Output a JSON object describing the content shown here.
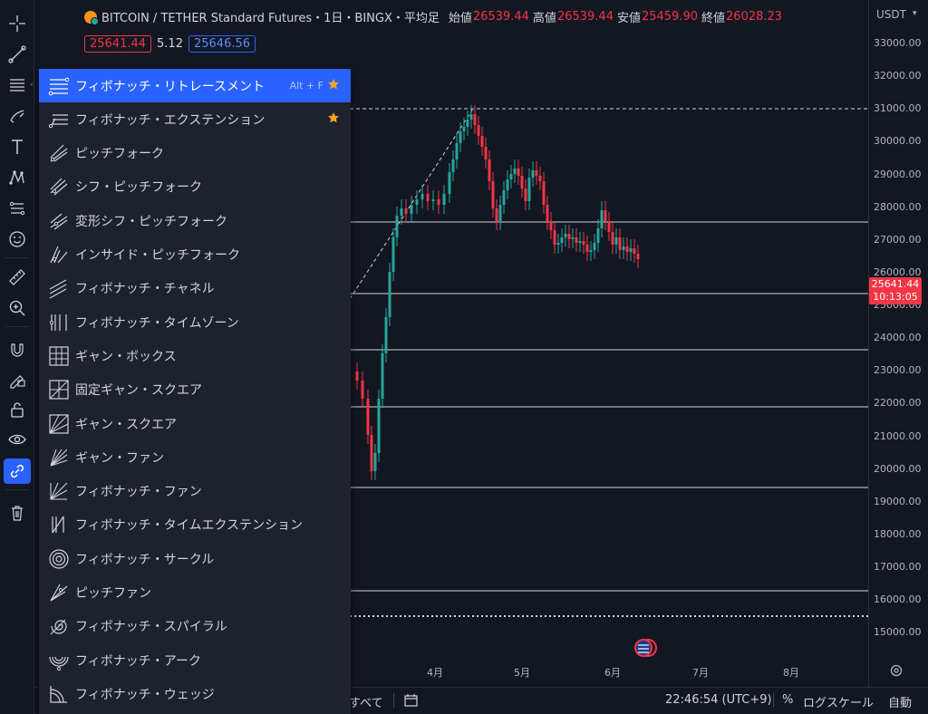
{
  "header": {
    "symbol": "BITCOIN / TETHER Standard Futures・1日・BINGX・平均足",
    "open_label": "始値",
    "open": "26539.44",
    "high_label": "高値",
    "high": "26539.44",
    "low_label": "安値",
    "low": "25459.90",
    "close_label": "終値",
    "close": "26028.23",
    "sell_price": "25641.44",
    "spread": "5.12",
    "buy_price": "25646.56"
  },
  "price_axis": {
    "currency": "USDT",
    "ticks": [
      "33000.00",
      "32000.00",
      "31000.00",
      "30000.00",
      "29000.00",
      "28000.00",
      "27000.00",
      "26000.00",
      "25000.00",
      "24000.00",
      "23000.00",
      "22000.00",
      "21000.00",
      "20000.00",
      "19000.00",
      "18000.00",
      "17000.00",
      "16000.00",
      "15000.00"
    ],
    "last_price": "25641.44",
    "countdown": "10:13:05"
  },
  "time_axis": {
    "labels": [
      "4月",
      "5月",
      "6月",
      "7月",
      "8月"
    ]
  },
  "bottombar": {
    "range_all": "すべて",
    "clock": "22:46:54 (UTC+9)",
    "percent": "%",
    "log_scale": "ログスケール",
    "auto": "自動"
  },
  "menu": {
    "items": [
      {
        "label": "フィボナッチ・リトレースメント",
        "shortcut": "Alt + F",
        "starred": true,
        "active": true,
        "icon": "fib-retracement-icon"
      },
      {
        "label": "フィボナッチ・エクステンション",
        "starred": true,
        "icon": "fib-extension-icon"
      },
      {
        "label": "ピッチフォーク",
        "icon": "pitchfork-icon"
      },
      {
        "label": "シフ・ピッチフォーク",
        "icon": "schiff-pitchfork-icon"
      },
      {
        "label": "変形シフ・ピッチフォーク",
        "icon": "modified-schiff-pitchfork-icon"
      },
      {
        "label": "インサイド・ピッチフォーク",
        "icon": "inside-pitchfork-icon"
      },
      {
        "label": "フィボナッチ・チャネル",
        "icon": "fib-channel-icon"
      },
      {
        "label": "フィボナッチ・タイムゾーン",
        "icon": "fib-timezone-icon"
      },
      {
        "label": "ギャン・ボックス",
        "icon": "gann-box-icon"
      },
      {
        "label": "固定ギャン・スクエア",
        "icon": "fixed-gann-square-icon"
      },
      {
        "label": "ギャン・スクエア",
        "icon": "gann-square-icon"
      },
      {
        "label": "ギャン・ファン",
        "icon": "gann-fan-icon"
      },
      {
        "label": "フィボナッチ・ファン",
        "icon": "fib-fan-icon"
      },
      {
        "label": "フィボナッチ・タイムエクステンション",
        "icon": "fib-time-extension-icon"
      },
      {
        "label": "フィボナッチ・サークル",
        "icon": "fib-circle-icon"
      },
      {
        "label": "ピッチファン",
        "icon": "pitchfan-icon"
      },
      {
        "label": "フィボナッチ・スパイラル",
        "icon": "fib-spiral-icon"
      },
      {
        "label": "フィボナッチ・アーク",
        "icon": "fib-arc-icon"
      },
      {
        "label": "フィボナッチ・ウェッジ",
        "icon": "fib-wedge-icon"
      }
    ]
  },
  "colors": {
    "background": "#131722",
    "up": "#26a69a",
    "down": "#f23645",
    "accent": "#2962ff",
    "star": "#f7a325"
  },
  "toolbar": {
    "tools": [
      "crosshair-icon",
      "trend-line-icon",
      "fib-tools-icon",
      "brush-icon",
      "text-icon",
      "pattern-icon",
      "measure-icon",
      "emoji-icon",
      "ruler-icon",
      "zoom-icon",
      "magnet-icon",
      "lock-drawing-icon",
      "lock-icon",
      "eye-icon",
      "link-icon",
      "trash-icon"
    ]
  }
}
